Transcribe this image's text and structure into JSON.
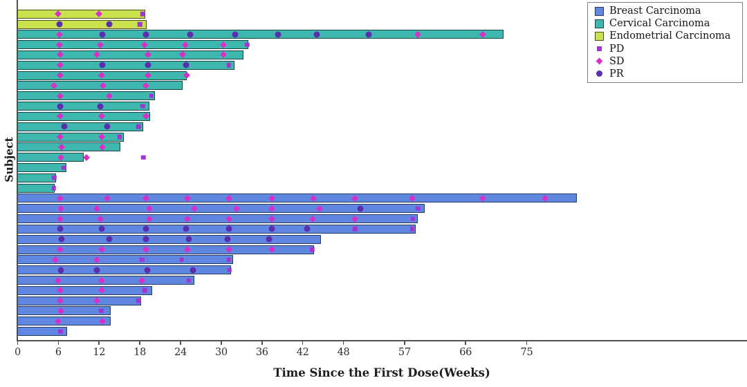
{
  "axis": {
    "xlabel": "Time Since the First Dose(Weeks)",
    "ylabel": "Subject"
  },
  "legend": {
    "items": [
      {
        "label": "Breast Carcinoma",
        "type": "patch",
        "color": "#5f87e2",
        "border": "#2a3960"
      },
      {
        "label": "Cervical Carcinoma",
        "type": "patch",
        "color": "#3eb7af",
        "border": "#1c4442"
      },
      {
        "label": "Endometrial Carcinoma",
        "type": "patch",
        "color": "#c9e24e",
        "border": "#4b4d1d"
      },
      {
        "label": "PD",
        "type": "square",
        "color": "#a134d4"
      },
      {
        "label": "SD",
        "type": "diamond",
        "color": "#d630c6"
      },
      {
        "label": "PR",
        "type": "circle",
        "color": "#5b2ead"
      }
    ]
  },
  "chart_data": {
    "type": "bar",
    "subtype": "horizontal-swimmer-plot",
    "title": "",
    "xlabel": "Time Since the First Dose(Weeks)",
    "ylabel": "Subject",
    "x_ticks": [
      0,
      6,
      12,
      18,
      24,
      30,
      36,
      42,
      48,
      57,
      66,
      75
    ],
    "xlim": [
      0,
      107
    ],
    "grid": false,
    "legend_position": "top-right",
    "groups": {
      "Breast Carcinoma": {
        "fill": "#5f87e2",
        "edge": "#2a3960"
      },
      "Cervical Carcinoma": {
        "fill": "#3eb7af",
        "edge": "#1c4442"
      },
      "Endometrial Carcinoma": {
        "fill": "#c9e24e",
        "edge": "#4b4d1d"
      }
    },
    "markers": {
      "PD": {
        "shape": "square",
        "color": "#a134d4",
        "label": "PD"
      },
      "SD": {
        "shape": "diamond",
        "color": "#d630c6",
        "label": "SD"
      },
      "PR": {
        "shape": "circle",
        "color": "#5b2ead",
        "label": "PR"
      }
    },
    "subjects": [
      {
        "group": "Endometrial Carcinoma",
        "length": 18.7,
        "events": [
          {
            "type": "SD",
            "week": 6.0
          },
          {
            "type": "SD",
            "week": 12.0
          },
          {
            "type": "PD",
            "week": 18.4
          }
        ]
      },
      {
        "group": "Endometrial Carcinoma",
        "length": 18.9,
        "events": [
          {
            "type": "PR",
            "week": 6.2
          },
          {
            "type": "PR",
            "week": 13.5
          },
          {
            "type": "PD",
            "week": 18.0
          }
        ]
      },
      {
        "group": "Cervical Carcinoma",
        "length": 71.5,
        "events": [
          {
            "type": "SD",
            "week": 6.2
          },
          {
            "type": "PR",
            "week": 12.5
          },
          {
            "type": "PR",
            "week": 18.9
          },
          {
            "type": "PR",
            "week": 25.4
          },
          {
            "type": "PR",
            "week": 32.1
          },
          {
            "type": "PR",
            "week": 38.4
          },
          {
            "type": "PR",
            "week": 44.1
          },
          {
            "type": "PR",
            "week": 51.7
          },
          {
            "type": "SD",
            "week": 59.0
          },
          {
            "type": "SD",
            "week": 68.5
          }
        ]
      },
      {
        "group": "Cervical Carcinoma",
        "length": 33.9,
        "events": [
          {
            "type": "SD",
            "week": 6.2
          },
          {
            "type": "SD",
            "week": 12.2
          },
          {
            "type": "SD",
            "week": 18.7
          },
          {
            "type": "SD",
            "week": 24.7
          },
          {
            "type": "SD",
            "week": 30.3
          },
          {
            "type": "PD",
            "week": 33.8
          }
        ]
      },
      {
        "group": "Cervical Carcinoma",
        "length": 33.2,
        "events": [
          {
            "type": "SD",
            "week": 6.3
          },
          {
            "type": "SD",
            "week": 11.7
          },
          {
            "type": "SD",
            "week": 19.2
          },
          {
            "type": "SD",
            "week": 24.3
          },
          {
            "type": "SD",
            "week": 30.3
          }
        ]
      },
      {
        "group": "Cervical Carcinoma",
        "length": 31.8,
        "events": [
          {
            "type": "SD",
            "week": 6.3
          },
          {
            "type": "PR",
            "week": 12.5
          },
          {
            "type": "PR",
            "week": 19.2
          },
          {
            "type": "PR",
            "week": 24.8
          },
          {
            "type": "PD",
            "week": 31.1
          }
        ]
      },
      {
        "group": "Cervical Carcinoma",
        "length": 24.8,
        "events": [
          {
            "type": "SD",
            "week": 6.3
          },
          {
            "type": "SD",
            "week": 12.4
          },
          {
            "type": "SD",
            "week": 19.2
          },
          {
            "type": "SD",
            "week": 24.9
          }
        ]
      },
      {
        "group": "Cervical Carcinoma",
        "length": 24.2,
        "events": [
          {
            "type": "SD",
            "week": 5.3
          },
          {
            "type": "SD",
            "week": 12.6
          },
          {
            "type": "SD",
            "week": 18.9
          }
        ]
      },
      {
        "group": "Cervical Carcinoma",
        "length": 20.1,
        "events": [
          {
            "type": "SD",
            "week": 6.3
          },
          {
            "type": "SD",
            "week": 13.5
          },
          {
            "type": "PD",
            "week": 19.7
          }
        ]
      },
      {
        "group": "Cervical Carcinoma",
        "length": 19.3,
        "events": [
          {
            "type": "PR",
            "week": 6.3
          },
          {
            "type": "PR",
            "week": 12.2
          },
          {
            "type": "PD",
            "week": 18.4
          }
        ]
      },
      {
        "group": "Cervical Carcinoma",
        "length": 19.4,
        "events": [
          {
            "type": "SD",
            "week": 6.3
          },
          {
            "type": "SD",
            "week": 12.4
          },
          {
            "type": "SD",
            "week": 18.9
          }
        ]
      },
      {
        "group": "Cervical Carcinoma",
        "length": 18.4,
        "events": [
          {
            "type": "PR",
            "week": 6.9
          },
          {
            "type": "PR",
            "week": 13.2
          },
          {
            "type": "PD",
            "week": 17.8
          }
        ]
      },
      {
        "group": "Cervical Carcinoma",
        "length": 15.5,
        "events": [
          {
            "type": "SD",
            "week": 6.3
          },
          {
            "type": "SD",
            "week": 12.4
          },
          {
            "type": "PD",
            "week": 15.0
          }
        ]
      },
      {
        "group": "Cervical Carcinoma",
        "length": 15.0,
        "events": [
          {
            "type": "SD",
            "week": 6.5
          },
          {
            "type": "SD",
            "week": 12.5
          }
        ]
      },
      {
        "group": "Cervical Carcinoma",
        "length": 9.6,
        "events": [
          {
            "type": "SD",
            "week": 6.4
          },
          {
            "type": "SD",
            "week": 10.1
          },
          {
            "type": "PD",
            "week": 18.5
          }
        ]
      },
      {
        "group": "Cervical Carcinoma",
        "length": 7.1,
        "events": [
          {
            "type": "PD",
            "week": 6.8
          }
        ]
      },
      {
        "group": "Cervical Carcinoma",
        "length": 5.6,
        "events": [
          {
            "type": "PD",
            "week": 5.4
          }
        ]
      },
      {
        "group": "Cervical Carcinoma",
        "length": 5.3,
        "events": [
          {
            "type": "PD",
            "week": 5.3
          }
        ]
      },
      {
        "group": "Breast Carcinoma",
        "length": 82.3,
        "events": [
          {
            "type": "SD",
            "week": 6.3
          },
          {
            "type": "SD",
            "week": 13.2
          },
          {
            "type": "SD",
            "week": 18.9
          },
          {
            "type": "SD",
            "week": 25.0
          },
          {
            "type": "SD",
            "week": 31.1
          },
          {
            "type": "SD",
            "week": 37.4
          },
          {
            "type": "SD",
            "week": 43.6
          },
          {
            "type": "SD",
            "week": 49.7
          },
          {
            "type": "SD",
            "week": 58.1
          },
          {
            "type": "SD",
            "week": 68.5
          },
          {
            "type": "SD",
            "week": 77.7
          }
        ]
      },
      {
        "group": "Breast Carcinoma",
        "length": 59.9,
        "events": [
          {
            "type": "SD",
            "week": 6.4
          },
          {
            "type": "SD",
            "week": 11.7
          },
          {
            "type": "SD",
            "week": 19.4
          },
          {
            "type": "SD",
            "week": 26.0
          },
          {
            "type": "SD",
            "week": 32.3
          },
          {
            "type": "SD",
            "week": 37.4
          },
          {
            "type": "SD",
            "week": 44.5
          },
          {
            "type": "PR",
            "week": 50.5
          },
          {
            "type": "PD",
            "week": 59.0
          }
        ]
      },
      {
        "group": "Breast Carcinoma",
        "length": 58.8,
        "events": [
          {
            "type": "SD",
            "week": 6.3
          },
          {
            "type": "SD",
            "week": 12.2
          },
          {
            "type": "SD",
            "week": 19.4
          },
          {
            "type": "SD",
            "week": 25.0
          },
          {
            "type": "SD",
            "week": 31.1
          },
          {
            "type": "SD",
            "week": 37.4
          },
          {
            "type": "SD",
            "week": 43.5
          },
          {
            "type": "SD",
            "week": 49.7
          },
          {
            "type": "PD",
            "week": 58.2
          }
        ]
      },
      {
        "group": "Breast Carcinoma",
        "length": 58.5,
        "events": [
          {
            "type": "PR",
            "week": 6.3
          },
          {
            "type": "PR",
            "week": 12.4
          },
          {
            "type": "PR",
            "week": 18.9
          },
          {
            "type": "PR",
            "week": 24.8
          },
          {
            "type": "PR",
            "week": 31.1
          },
          {
            "type": "PR",
            "week": 37.5
          },
          {
            "type": "PR",
            "week": 42.6
          },
          {
            "type": "PD",
            "week": 49.7
          },
          {
            "type": "PD",
            "week": 58.1
          }
        ]
      },
      {
        "group": "Breast Carcinoma",
        "length": 44.6,
        "events": [
          {
            "type": "PR",
            "week": 6.5
          },
          {
            "type": "PR",
            "week": 13.5
          },
          {
            "type": "PR",
            "week": 18.9
          },
          {
            "type": "PR",
            "week": 25.2
          },
          {
            "type": "PR",
            "week": 30.9
          },
          {
            "type": "PR",
            "week": 37.0
          }
        ]
      },
      {
        "group": "Breast Carcinoma",
        "length": 43.6,
        "events": [
          {
            "type": "SD",
            "week": 6.3
          },
          {
            "type": "SD",
            "week": 12.4
          },
          {
            "type": "SD",
            "week": 18.9
          },
          {
            "type": "SD",
            "week": 25.0
          },
          {
            "type": "SD",
            "week": 31.1
          },
          {
            "type": "SD",
            "week": 37.5
          },
          {
            "type": "PD",
            "week": 43.4
          }
        ]
      },
      {
        "group": "Breast Carcinoma",
        "length": 31.6,
        "events": [
          {
            "type": "SD",
            "week": 5.6
          },
          {
            "type": "SD",
            "week": 11.7
          },
          {
            "type": "PD",
            "week": 18.3
          },
          {
            "type": "PD",
            "week": 24.2
          },
          {
            "type": "PD",
            "week": 31.1
          }
        ]
      },
      {
        "group": "Breast Carcinoma",
        "length": 31.3,
        "events": [
          {
            "type": "PR",
            "week": 6.4
          },
          {
            "type": "PR",
            "week": 11.7
          },
          {
            "type": "PR",
            "week": 19.1
          },
          {
            "type": "PR",
            "week": 25.8
          },
          {
            "type": "PD",
            "week": 31.2
          }
        ]
      },
      {
        "group": "Breast Carcinoma",
        "length": 25.9,
        "events": [
          {
            "type": "SD",
            "week": 6.0
          },
          {
            "type": "SD",
            "week": 12.4
          },
          {
            "type": "SD",
            "week": 18.3
          },
          {
            "type": "PD",
            "week": 25.2
          }
        ]
      },
      {
        "group": "Breast Carcinoma",
        "length": 19.7,
        "events": [
          {
            "type": "SD",
            "week": 6.3
          },
          {
            "type": "SD",
            "week": 12.4
          },
          {
            "type": "PD",
            "week": 18.7
          }
        ]
      },
      {
        "group": "Breast Carcinoma",
        "length": 18.1,
        "events": [
          {
            "type": "SD",
            "week": 6.3
          },
          {
            "type": "SD",
            "week": 11.7
          },
          {
            "type": "PD",
            "week": 17.8
          }
        ]
      },
      {
        "group": "Breast Carcinoma",
        "length": 13.6,
        "events": [
          {
            "type": "SD",
            "week": 6.4
          },
          {
            "type": "PD",
            "week": 12.3
          }
        ]
      },
      {
        "group": "Breast Carcinoma",
        "length": 13.6,
        "events": [
          {
            "type": "SD",
            "week": 6.0
          },
          {
            "type": "SD",
            "week": 12.5
          }
        ]
      },
      {
        "group": "Breast Carcinoma",
        "length": 7.2,
        "events": [
          {
            "type": "PD",
            "week": 6.3
          }
        ]
      }
    ]
  }
}
